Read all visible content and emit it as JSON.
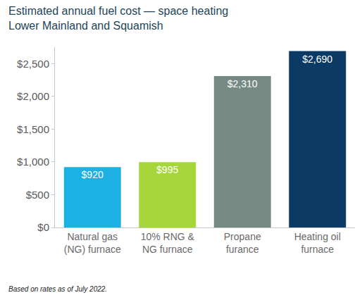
{
  "chart_data": {
    "type": "bar",
    "title": "Estimated annual fuel cost — space heating",
    "subtitle": "Lower Mainland and Squamish",
    "categories": [
      "Natural gas\n(NG) furnace",
      "10% RNG &\nNG furnace",
      "Propane\nfurance",
      "Heating oil\nfurnace"
    ],
    "values": [
      920,
      995,
      2310,
      2690
    ],
    "value_labels": [
      "$920",
      "$995",
      "$2,310",
      "$2,690"
    ],
    "colors": [
      "#1cb0e3",
      "#a5d63a",
      "#768a84",
      "#0b3a64"
    ],
    "data_labels": true,
    "ylim": [
      0,
      2750
    ],
    "yticks": [
      {
        "value": 0,
        "label": "$0"
      },
      {
        "value": 500,
        "label": "$500"
      },
      {
        "value": 1000,
        "label": "$1,000"
      },
      {
        "value": 1500,
        "label": "$1,500"
      },
      {
        "value": 2000,
        "label": "$2,000"
      },
      {
        "value": 2500,
        "label": "$2,500"
      }
    ],
    "grid": false,
    "annotations": [
      "Based on rates as of July 2022."
    ]
  }
}
